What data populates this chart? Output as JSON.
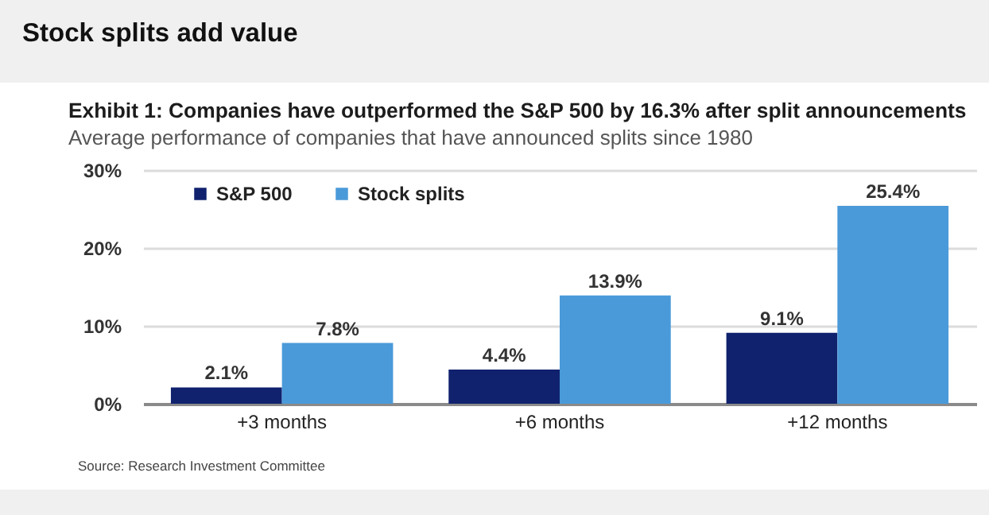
{
  "chart_data": {
    "type": "bar",
    "title": "Stock splits add value",
    "subtitle": "Exhibit 1: Companies have outperformed the S&P 500 by 16.3% after split announcements",
    "annotations": [
      "Average performance of companies that have announced splits since 1980",
      "Source: Research Investment Committee"
    ],
    "categories": [
      "+3 months",
      "+6 months",
      "+12 months"
    ],
    "series": [
      {
        "name": "S&P 500",
        "color": "#10226e",
        "values": [
          2.1,
          4.4,
          9.1
        ],
        "value_labels": [
          "2.1%",
          "4.4%",
          "9.1%"
        ]
      },
      {
        "name": "Stock splits",
        "color": "#4a9ad9",
        "values": [
          7.8,
          13.9,
          25.4
        ],
        "value_labels": [
          "7.8%",
          "13.9%",
          "25.4%"
        ]
      }
    ],
    "ylim": [
      0,
      30
    ],
    "yticks": [
      {
        "value": 0,
        "label": "0%"
      },
      {
        "value": 10,
        "label": "10%"
      },
      {
        "value": 20,
        "label": "20%"
      },
      {
        "value": 30,
        "label": "30%"
      }
    ],
    "grid": "y",
    "legend": "top left"
  }
}
